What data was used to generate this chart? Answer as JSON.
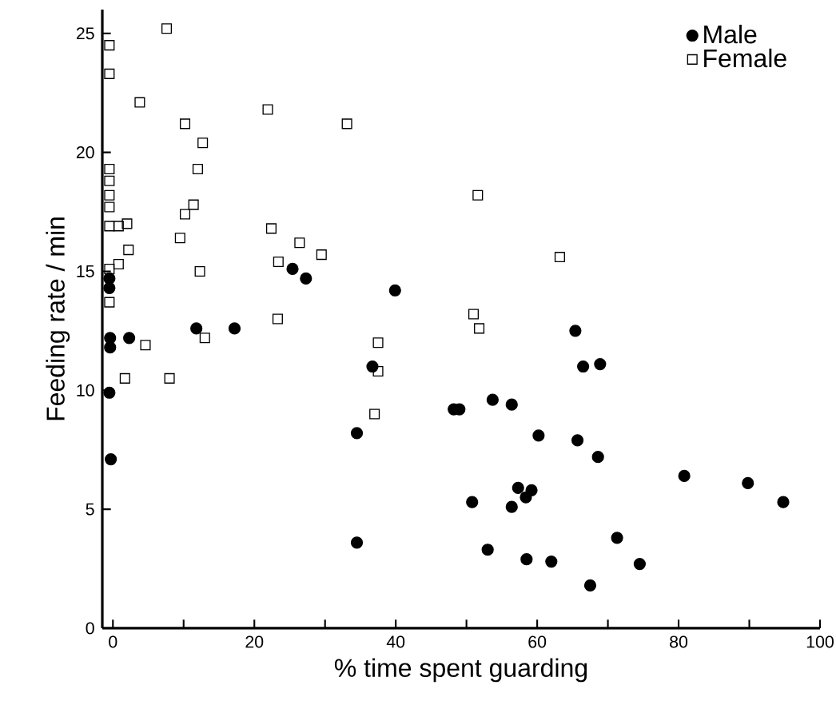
{
  "chart_data": {
    "type": "scatter",
    "xlabel": "% time spent guarding",
    "ylabel": "Feeding rate / min",
    "xlim": [
      -1.5,
      100
    ],
    "ylim": [
      0,
      26
    ],
    "xticks": [
      0,
      {
        "value": 10,
        "label": null
      },
      20,
      {
        "value": 30,
        "label": null
      },
      40,
      {
        "value": 50,
        "label": null
      },
      60,
      {
        "value": 70,
        "label": null
      },
      80,
      {
        "value": 90,
        "label": null
      },
      100
    ],
    "yticks": [
      0,
      5,
      10,
      15,
      20,
      25
    ],
    "grid": false,
    "legend": "top right",
    "series": [
      {
        "name": "Male",
        "color": "#000000",
        "marker": "circle",
        "x": [
          -0.5,
          -0.5,
          -0.4,
          -0.4,
          2.3,
          11.8,
          17.2,
          25.4,
          27.3,
          -0.5,
          -0.3,
          39.9,
          36.7,
          34.5,
          34.5,
          48.2,
          49.0,
          53.7,
          56.4,
          60.2,
          50.8,
          53.0,
          57.3,
          59.2,
          56.4,
          58.4,
          58.5,
          62.0,
          65.4,
          66.5,
          68.9,
          65.7,
          68.6,
          80.8,
          89.8,
          94.8,
          71.3,
          74.5,
          67.5
        ],
        "values": [
          14.7,
          14.3,
          12.2,
          11.8,
          12.2,
          12.6,
          12.6,
          15.1,
          14.7,
          9.9,
          7.1,
          14.2,
          11.0,
          8.2,
          3.6,
          9.2,
          9.2,
          9.6,
          9.4,
          8.1,
          5.3,
          3.3,
          5.9,
          5.8,
          5.1,
          5.5,
          2.9,
          2.8,
          12.5,
          11.0,
          11.1,
          7.9,
          7.2,
          6.4,
          6.1,
          5.3,
          3.8,
          2.7,
          1.8
        ]
      },
      {
        "name": "Female",
        "color": "#000000",
        "marker": "square",
        "x": [
          7.6,
          -0.5,
          -0.5,
          3.8,
          21.9,
          10.2,
          12.7,
          -0.5,
          12.0,
          -0.5,
          -0.5,
          -0.5,
          11.4,
          10.2,
          -0.5,
          0.8,
          2.0,
          22.4,
          9.5,
          26.4,
          2.2,
          29.5,
          23.4,
          0.8,
          -0.5,
          12.3,
          -0.5,
          23.3,
          13.0,
          4.6,
          1.7,
          8.0,
          33.1,
          51.6,
          63.2,
          51.0,
          51.8,
          37.5,
          37.5,
          37.0
        ],
        "values": [
          25.2,
          24.5,
          23.3,
          22.1,
          21.8,
          21.2,
          20.4,
          19.3,
          19.3,
          18.8,
          18.2,
          17.7,
          17.8,
          17.4,
          16.9,
          16.9,
          17.0,
          16.8,
          16.4,
          16.2,
          15.9,
          15.7,
          15.4,
          15.3,
          15.1,
          15.0,
          13.7,
          13.0,
          12.2,
          11.9,
          10.5,
          10.5,
          21.2,
          18.2,
          15.6,
          13.2,
          12.6,
          12.0,
          10.8,
          9.0
        ]
      }
    ]
  }
}
